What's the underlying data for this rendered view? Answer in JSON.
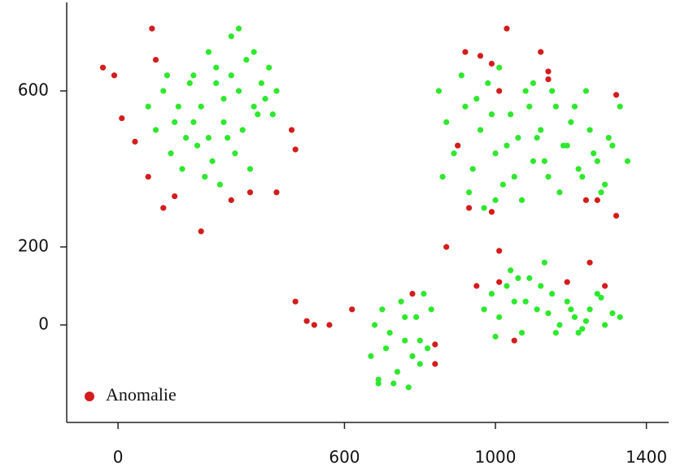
{
  "chart_data": {
    "type": "scatter",
    "xlim": [
      -136,
      1459
    ],
    "ylim": [
      -250,
      827
    ],
    "xticks": [
      0,
      600,
      1000,
      1400
    ],
    "yticks": [
      0,
      200,
      600
    ],
    "legend": "lower left",
    "series": [
      {
        "color": "#2ee82e",
        "x": [
          80,
          120,
          150,
          180,
          200,
          220,
          240,
          260,
          280,
          300,
          320,
          340,
          360,
          380,
          400,
          420,
          100,
          140,
          170,
          210,
          230,
          250,
          270,
          290,
          310,
          330,
          350,
          370,
          390,
          160,
          190,
          260,
          300,
          240,
          200,
          280,
          320,
          360,
          130,
          410,
          850,
          870,
          900,
          920,
          940,
          960,
          980,
          1000,
          1020,
          1040,
          1060,
          1080,
          1100,
          1120,
          1140,
          1160,
          1180,
          1200,
          1220,
          1240,
          1260,
          1280,
          1300,
          1330,
          1350,
          860,
          890,
          910,
          930,
          950,
          970,
          990,
          1010,
          1030,
          1050,
          1070,
          1090,
          1110,
          1130,
          1150,
          1170,
          1190,
          1210,
          1230,
          1250,
          1270,
          1290,
          1310,
          1000,
          1100,
          970,
          990,
          1010,
          1030,
          1050,
          1070,
          1090,
          1110,
          1130,
          1150,
          1170,
          1190,
          1210,
          1230,
          1250,
          1270,
          1290,
          1310,
          1330,
          1000,
          1040,
          1080,
          1120,
          1160,
          1200,
          1240,
          1280,
          1060,
          1140,
          1220,
          670,
          690,
          700,
          720,
          730,
          750,
          760,
          770,
          790,
          800,
          810,
          820,
          680,
          740,
          780,
          830,
          710,
          760,
          800,
          690
        ],
        "values": [
          560,
          600,
          520,
          480,
          640,
          560,
          700,
          620,
          520,
          740,
          600,
          680,
          560,
          620,
          660,
          600,
          500,
          440,
          400,
          460,
          380,
          420,
          360,
          480,
          440,
          500,
          400,
          540,
          580,
          560,
          620,
          660,
          640,
          480,
          520,
          580,
          760,
          700,
          640,
          540,
          600,
          520,
          460,
          560,
          400,
          500,
          620,
          440,
          360,
          540,
          480,
          600,
          420,
          500,
          380,
          560,
          460,
          520,
          400,
          600,
          440,
          340,
          480,
          560,
          420,
          380,
          440,
          640,
          340,
          580,
          300,
          540,
          660,
          460,
          380,
          320,
          560,
          480,
          420,
          600,
          340,
          460,
          560,
          380,
          500,
          420,
          360,
          460,
          320,
          620,
          40,
          80,
          20,
          100,
          60,
          -20,
          120,
          40,
          160,
          80,
          0,
          60,
          20,
          -10,
          40,
          80,
          0,
          30,
          20,
          -30,
          140,
          60,
          100,
          -20,
          40,
          10,
          70,
          120,
          30,
          -20,
          -80,
          -140,
          40,
          -20,
          -150,
          60,
          -40,
          -160,
          20,
          -100,
          80,
          -60,
          0,
          -120,
          -80,
          40,
          -60,
          20,
          -40,
          -150
        ]
      },
      {
        "name": "Anomalie",
        "color": "#d41c1c",
        "x": [
          -40,
          -10,
          10,
          45,
          90,
          100,
          80,
          150,
          120,
          220,
          300,
          350,
          420,
          460,
          470,
          470,
          500,
          520,
          560,
          620,
          780,
          840,
          840,
          870,
          950,
          900,
          920,
          960,
          990,
          1010,
          1010,
          1010,
          1030,
          1120,
          1140,
          1140,
          1190,
          1250,
          1240,
          1270,
          1290,
          1320,
          1320,
          1050,
          930,
          990
        ],
        "values": [
          660,
          640,
          530,
          470,
          760,
          680,
          380,
          330,
          300,
          240,
          320,
          340,
          340,
          500,
          450,
          60,
          10,
          0,
          0,
          40,
          80,
          -50,
          -100,
          200,
          100,
          460,
          700,
          690,
          670,
          600,
          190,
          110,
          760,
          700,
          650,
          630,
          110,
          160,
          320,
          320,
          100,
          590,
          280,
          -40,
          300,
          290
        ]
      }
    ]
  }
}
